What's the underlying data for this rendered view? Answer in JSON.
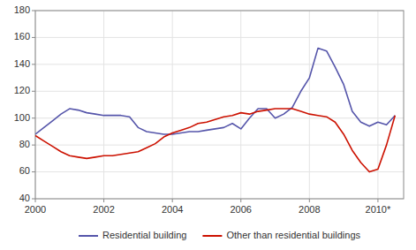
{
  "chart_data": {
    "type": "line",
    "x": [
      2000.0,
      2000.25,
      2000.5,
      2000.75,
      2001.0,
      2001.25,
      2001.5,
      2001.75,
      2002.0,
      2002.25,
      2002.5,
      2002.75,
      2003.0,
      2003.25,
      2003.5,
      2003.75,
      2004.0,
      2004.25,
      2004.5,
      2004.75,
      2005.0,
      2005.25,
      2005.5,
      2005.75,
      2006.0,
      2006.25,
      2006.5,
      2006.75,
      2007.0,
      2007.25,
      2007.5,
      2007.75,
      2008.0,
      2008.25,
      2008.5,
      2008.75,
      2009.0,
      2009.25,
      2009.5,
      2009.75,
      2010.0,
      2010.25,
      2010.5
    ],
    "series": [
      {
        "name": "Residential building",
        "color": "#5555aa",
        "values": [
          88,
          93,
          98,
          103,
          107,
          106,
          104,
          103,
          102,
          102,
          102,
          101,
          93,
          90,
          89,
          88,
          88,
          89,
          90,
          90,
          91,
          92,
          93,
          96,
          92,
          100,
          107,
          107,
          100,
          103,
          108,
          120,
          130,
          152,
          150,
          138,
          125,
          105,
          97,
          94,
          97,
          95,
          102
        ]
      },
      {
        "name": "Other than residential buildings",
        "color": "#cc1100",
        "values": [
          87,
          83,
          79,
          75,
          72,
          71,
          70,
          71,
          72,
          72,
          73,
          74,
          75,
          78,
          81,
          86,
          89,
          91,
          93,
          96,
          97,
          99,
          101,
          102,
          104,
          103,
          105,
          106,
          107,
          107,
          107,
          105,
          103,
          102,
          101,
          97,
          88,
          76,
          67,
          60,
          62,
          80,
          102
        ]
      }
    ],
    "xlim": [
      2000,
      2010.75
    ],
    "ylim": [
      40,
      180
    ],
    "xticks": [
      2000,
      2002,
      2004,
      2006,
      2008,
      {
        "value": 2010,
        "label": "2010*"
      }
    ],
    "yticks": [
      40,
      60,
      80,
      100,
      120,
      140,
      160,
      180
    ],
    "grid": true,
    "legend": "bottom"
  }
}
